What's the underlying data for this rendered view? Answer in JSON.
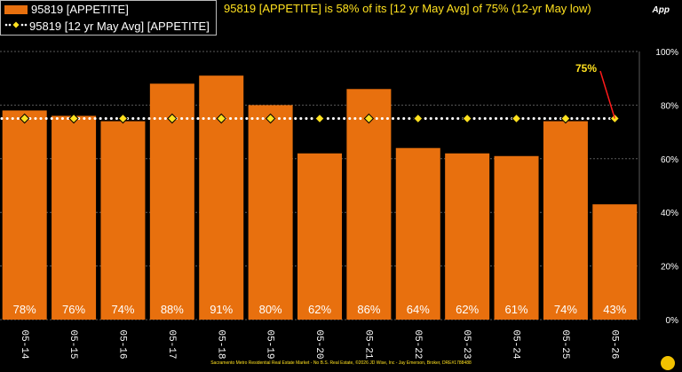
{
  "legend": {
    "bar_label": "95819 [APPETITE]",
    "line_label": "95819 [12 yr May Avg] [APPETITE]"
  },
  "headline": "95819 [APPETITE] is 58% of its [12 yr May Avg] of 75% (12-yr May low)",
  "app_label": "App",
  "footer": "Sacramento Metro Residential Real Estate Market - No B.S. Real Estate, ©2026 JD Wise, Inc - Jay Emerson, Broker, DRE#1788488",
  "colors": {
    "bar": "#E8700E",
    "avg_marker": "#FFE11F",
    "avg_line": "#FFFFFF",
    "callout": "#FF1A1A"
  },
  "chart_data": {
    "type": "bar",
    "categories": [
      "05-14",
      "05-15",
      "05-16",
      "05-17",
      "05-18",
      "05-19",
      "05-20",
      "05-21",
      "05-22",
      "05-23",
      "05-24",
      "05-25",
      "05-26"
    ],
    "series": [
      {
        "name": "95819 [APPETITE]",
        "type": "bar",
        "values": [
          78,
          76,
          74,
          88,
          91,
          80,
          62,
          86,
          64,
          62,
          61,
          74,
          43
        ],
        "labels": [
          "78%",
          "76%",
          "74%",
          "88%",
          "91%",
          "80%",
          "62%",
          "86%",
          "64%",
          "62%",
          "61%",
          "74%",
          "43%"
        ]
      },
      {
        "name": "95819 [12 yr May Avg] [APPETITE]",
        "type": "line",
        "values": [
          75,
          75,
          75,
          75,
          75,
          75,
          75,
          75,
          75,
          75,
          75,
          75,
          75
        ]
      }
    ],
    "ylim": [
      0,
      100
    ],
    "yticks": [
      0,
      20,
      40,
      60,
      80,
      100
    ],
    "ytick_labels": [
      "0%",
      "20%",
      "40%",
      "60%",
      "80%",
      "100%"
    ],
    "y_axis_side": "right",
    "annotation": {
      "text": "75%",
      "category": "05-26"
    },
    "grid": true
  }
}
